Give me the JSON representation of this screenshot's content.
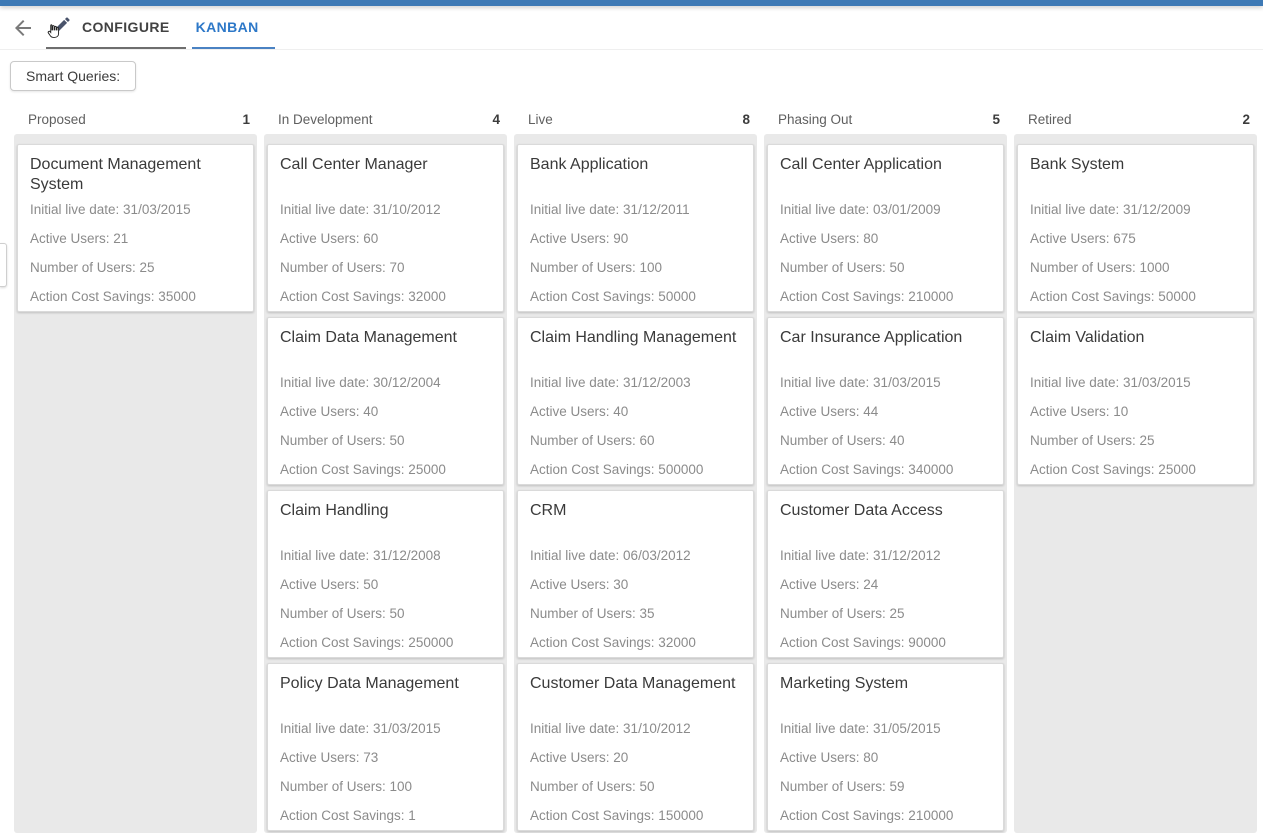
{
  "header": {
    "tabs": [
      {
        "label": "CONFIGURE",
        "active": false
      },
      {
        "label": "KANBAN",
        "active": true
      }
    ]
  },
  "toolbar": {
    "smart_queries_label": "Smart Queries:"
  },
  "colors": {
    "topbar_blue": "#3d79b5",
    "active_tab_blue": "#2d78c8",
    "inactive_tab_underline": "#6e6e6e",
    "column_background": "#e9e9e9",
    "card_title_text": "#3a3a3a",
    "card_body_text": "#8b8b8b"
  },
  "board": {
    "field_labels": [
      "Initial live date:",
      "Active Users:",
      "Number of Users:",
      "Action Cost Savings:"
    ],
    "columns": [
      {
        "title": "Proposed",
        "count": "1",
        "cards": [
          {
            "name": "Document Management System",
            "values": [
              "31/03/2015",
              "21",
              "25",
              "35000"
            ]
          }
        ]
      },
      {
        "title": "In Development",
        "count": "4",
        "cards": [
          {
            "name": "Call Center Manager",
            "values": [
              "31/10/2012",
              "60",
              "70",
              "32000"
            ]
          },
          {
            "name": "Claim Data Management",
            "values": [
              "30/12/2004",
              "40",
              "50",
              "25000"
            ]
          },
          {
            "name": "Claim Handling",
            "values": [
              "31/12/2008",
              "50",
              "50",
              "250000"
            ]
          },
          {
            "name": "Policy Data Management",
            "values": [
              "31/03/2015",
              "73",
              "100",
              "1"
            ]
          }
        ]
      },
      {
        "title": "Live",
        "count": "8",
        "cards": [
          {
            "name": "Bank Application",
            "values": [
              "31/12/2011",
              "90",
              "100",
              "50000"
            ]
          },
          {
            "name": "Claim Handling Management",
            "values": [
              "31/12/2003",
              "40",
              "60",
              "500000"
            ]
          },
          {
            "name": "CRM",
            "values": [
              "06/03/2012",
              "30",
              "35",
              "32000"
            ]
          },
          {
            "name": "Customer Data Management",
            "values": [
              "31/10/2012",
              "20",
              "50",
              "150000"
            ]
          }
        ]
      },
      {
        "title": "Phasing Out",
        "count": "5",
        "cards": [
          {
            "name": "Call Center Application",
            "values": [
              "03/01/2009",
              "80",
              "50",
              "210000"
            ]
          },
          {
            "name": "Car Insurance Application",
            "values": [
              "31/03/2015",
              "44",
              "40",
              "340000"
            ]
          },
          {
            "name": "Customer Data Access",
            "values": [
              "31/12/2012",
              "24",
              "25",
              "90000"
            ]
          },
          {
            "name": "Marketing System",
            "values": [
              "31/05/2015",
              "80",
              "59",
              "210000"
            ]
          }
        ]
      },
      {
        "title": "Retired",
        "count": "2",
        "cards": [
          {
            "name": "Bank System",
            "values": [
              "31/12/2009",
              "675",
              "1000",
              "50000"
            ]
          },
          {
            "name": "Claim Validation",
            "values": [
              "31/03/2015",
              "10",
              "25",
              "25000"
            ]
          }
        ]
      }
    ]
  }
}
